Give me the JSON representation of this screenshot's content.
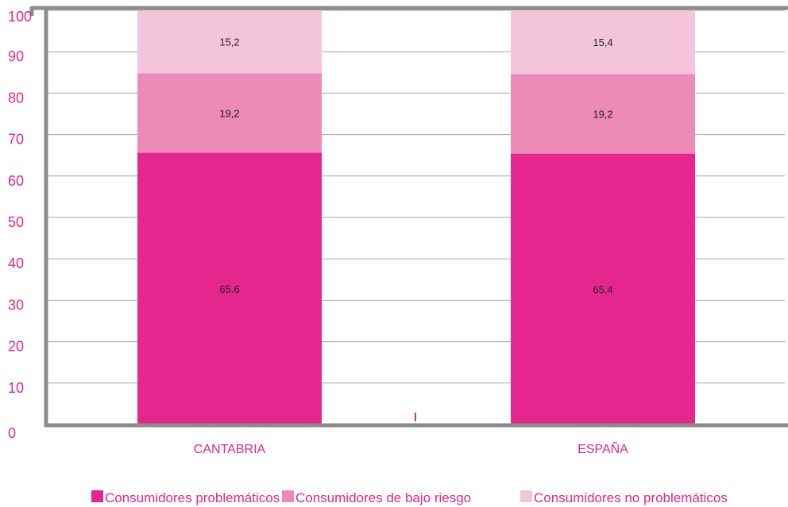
{
  "chart_data": {
    "type": "bar",
    "stacked": true,
    "categories": [
      "CANTABRIA",
      "ESPAÑA"
    ],
    "series": [
      {
        "name": "Consumidores problemáticos",
        "values": [
          65.6,
          65.4
        ],
        "labels": [
          "65.6",
          "65.4"
        ],
        "color": "#e4268e"
      },
      {
        "name": "Consumidores de bajo riesgo",
        "values": [
          19.2,
          19.2
        ],
        "labels": [
          "19,2",
          "19,2"
        ],
        "color": "#ec8ab8"
      },
      {
        "name": "Consumidores no problemáticos",
        "values": [
          15.2,
          15.4
        ],
        "labels": [
          "15,2",
          "15,4"
        ],
        "color": "#f4c4da"
      }
    ],
    "ylim": [
      0,
      100
    ],
    "yticks": [
      "0",
      "10",
      "20",
      "30",
      "40",
      "50",
      "60",
      "70",
      "80",
      "90",
      "100"
    ],
    "grid": true,
    "legend_position": "bottom",
    "axis_color": "#8c8c8c",
    "text_color": "#e4268e"
  }
}
